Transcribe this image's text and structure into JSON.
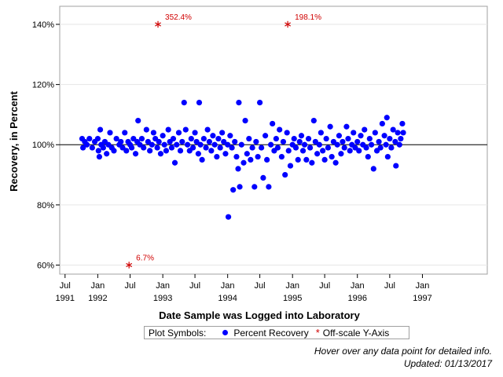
{
  "chart_data": {
    "type": "scatter",
    "title": "",
    "xlabel": "Date Sample was Logged into Laboratory",
    "ylabel": "Recovery, in Percent",
    "reference_line": 100,
    "ylim": [
      57,
      146
    ],
    "xlim": [
      "1991-06-01",
      "1998-01-01"
    ],
    "yticks": [
      {
        "value": 60,
        "label": "60%"
      },
      {
        "value": 80,
        "label": "80%"
      },
      {
        "value": 100,
        "label": "100%"
      },
      {
        "value": 120,
        "label": "120%"
      },
      {
        "value": 140,
        "label": "140%"
      }
    ],
    "xticks": [
      {
        "date": "1991-07-01",
        "label": "Jul",
        "year": "1991"
      },
      {
        "date": "1992-01-01",
        "label": "Jan",
        "year": "1992"
      },
      {
        "date": "1992-07-01",
        "label": "Jul",
        "year": ""
      },
      {
        "date": "1993-01-01",
        "label": "Jan",
        "year": "1993"
      },
      {
        "date": "1993-07-01",
        "label": "Jul",
        "year": ""
      },
      {
        "date": "1994-01-01",
        "label": "Jan",
        "year": "1994"
      },
      {
        "date": "1994-07-01",
        "label": "Jul",
        "year": ""
      },
      {
        "date": "1995-01-01",
        "label": "Jan",
        "year": "1995"
      },
      {
        "date": "1995-07-01",
        "label": "Jul",
        "year": ""
      },
      {
        "date": "1996-01-01",
        "label": "Jan",
        "year": "1996"
      },
      {
        "date": "1996-07-01",
        "label": "Jul",
        "year": ""
      },
      {
        "date": "1997-01-01",
        "label": "Jan",
        "year": "1997"
      }
    ],
    "series": [
      {
        "name": "Percent Recovery",
        "marker": "dot",
        "color": "#0000ff",
        "points": [
          [
            "1991-10-05",
            102
          ],
          [
            "1991-10-10",
            99
          ],
          [
            "1991-10-20",
            101
          ],
          [
            "1991-11-01",
            100
          ],
          [
            "1991-11-15",
            102
          ],
          [
            "1991-12-01",
            99
          ],
          [
            "1991-12-15",
            101
          ],
          [
            "1992-01-01",
            102
          ],
          [
            "1992-01-05",
            98
          ],
          [
            "1992-01-10",
            96
          ],
          [
            "1992-01-15",
            105
          ],
          [
            "1992-01-20",
            100
          ],
          [
            "1992-02-01",
            99
          ],
          [
            "1992-02-10",
            101
          ],
          [
            "1992-02-20",
            97
          ],
          [
            "1992-03-01",
            100
          ],
          [
            "1992-03-10",
            104
          ],
          [
            "1992-03-20",
            99
          ],
          [
            "1992-04-01",
            98
          ],
          [
            "1992-04-15",
            102
          ],
          [
            "1992-05-01",
            100
          ],
          [
            "1992-05-10",
            101
          ],
          [
            "1992-05-20",
            99
          ],
          [
            "1992-06-01",
            104
          ],
          [
            "1992-06-10",
            98
          ],
          [
            "1992-06-20",
            101
          ],
          [
            "1992-07-01",
            100
          ],
          [
            "1992-07-10",
            99
          ],
          [
            "1992-07-20",
            102
          ],
          [
            "1992-08-01",
            97
          ],
          [
            "1992-08-10",
            101
          ],
          [
            "1992-08-15",
            108
          ],
          [
            "1992-08-25",
            100
          ],
          [
            "1992-09-05",
            102
          ],
          [
            "1992-09-15",
            99
          ],
          [
            "1992-10-01",
            105
          ],
          [
            "1992-10-10",
            101
          ],
          [
            "1992-10-20",
            98
          ],
          [
            "1992-11-01",
            100
          ],
          [
            "1992-11-10",
            104
          ],
          [
            "1992-11-20",
            102
          ],
          [
            "1992-12-01",
            99
          ],
          [
            "1992-12-10",
            101
          ],
          [
            "1992-12-20",
            97
          ],
          [
            "1993-01-01",
            103
          ],
          [
            "1993-01-10",
            100
          ],
          [
            "1993-01-20",
            98
          ],
          [
            "1993-02-01",
            105
          ],
          [
            "1993-02-10",
            101
          ],
          [
            "1993-02-20",
            99
          ],
          [
            "1993-03-01",
            102
          ],
          [
            "1993-03-10",
            94
          ],
          [
            "1993-03-20",
            100
          ],
          [
            "1993-04-01",
            104
          ],
          [
            "1993-04-10",
            98
          ],
          [
            "1993-04-20",
            101
          ],
          [
            "1993-05-01",
            114
          ],
          [
            "1993-05-10",
            105
          ],
          [
            "1993-05-20",
            100
          ],
          [
            "1993-06-01",
            98
          ],
          [
            "1993-06-10",
            102
          ],
          [
            "1993-06-20",
            99
          ],
          [
            "1993-07-01",
            104
          ],
          [
            "1993-07-10",
            101
          ],
          [
            "1993-07-20",
            97
          ],
          [
            "1993-07-25",
            114
          ],
          [
            "1993-08-01",
            100
          ],
          [
            "1993-08-10",
            95
          ],
          [
            "1993-08-20",
            102
          ],
          [
            "1993-09-01",
            99
          ],
          [
            "1993-09-10",
            105
          ],
          [
            "1993-09-20",
            101
          ],
          [
            "1993-10-01",
            98
          ],
          [
            "1993-10-10",
            103
          ],
          [
            "1993-10-20",
            100
          ],
          [
            "1993-11-01",
            96
          ],
          [
            "1993-11-10",
            102
          ],
          [
            "1993-11-20",
            99
          ],
          [
            "1993-12-01",
            104
          ],
          [
            "1993-12-10",
            101
          ],
          [
            "1993-12-20",
            97
          ],
          [
            "1994-01-01",
            100
          ],
          [
            "1994-01-05",
            76
          ],
          [
            "1994-01-15",
            103
          ],
          [
            "1994-01-25",
            99
          ],
          [
            "1994-02-01",
            85
          ],
          [
            "1994-02-10",
            101
          ],
          [
            "1994-02-20",
            96
          ],
          [
            "1994-03-01",
            92
          ],
          [
            "1994-03-05",
            114
          ],
          [
            "1994-03-10",
            86
          ],
          [
            "1994-03-20",
            100
          ],
          [
            "1994-04-01",
            94
          ],
          [
            "1994-04-10",
            108
          ],
          [
            "1994-04-20",
            97
          ],
          [
            "1994-05-01",
            102
          ],
          [
            "1994-05-10",
            95
          ],
          [
            "1994-05-20",
            99
          ],
          [
            "1994-06-01",
            86
          ],
          [
            "1994-06-10",
            101
          ],
          [
            "1994-06-20",
            96
          ],
          [
            "1994-07-01",
            114
          ],
          [
            "1994-07-10",
            99
          ],
          [
            "1994-07-20",
            89
          ],
          [
            "1994-08-01",
            103
          ],
          [
            "1994-08-10",
            95
          ],
          [
            "1994-08-20",
            86
          ],
          [
            "1994-09-01",
            100
          ],
          [
            "1994-09-10",
            107
          ],
          [
            "1994-09-20",
            98
          ],
          [
            "1994-10-01",
            102
          ],
          [
            "1994-10-10",
            99
          ],
          [
            "1994-10-20",
            105
          ],
          [
            "1994-11-01",
            96
          ],
          [
            "1994-11-10",
            101
          ],
          [
            "1994-11-20",
            90
          ],
          [
            "1994-12-01",
            104
          ],
          [
            "1994-12-10",
            98
          ],
          [
            "1994-12-20",
            93
          ],
          [
            "1995-01-01",
            100
          ],
          [
            "1995-01-10",
            102
          ],
          [
            "1995-01-20",
            99
          ],
          [
            "1995-02-01",
            95
          ],
          [
            "1995-02-10",
            101
          ],
          [
            "1995-02-20",
            103
          ],
          [
            "1995-03-01",
            98
          ],
          [
            "1995-03-10",
            100
          ],
          [
            "1995-03-20",
            95
          ],
          [
            "1995-04-01",
            102
          ],
          [
            "1995-04-10",
            99
          ],
          [
            "1995-04-20",
            94
          ],
          [
            "1995-05-01",
            108
          ],
          [
            "1995-05-10",
            101
          ],
          [
            "1995-05-20",
            97
          ],
          [
            "1995-06-01",
            100
          ],
          [
            "1995-06-10",
            104
          ],
          [
            "1995-06-20",
            98
          ],
          [
            "1995-07-01",
            95
          ],
          [
            "1995-07-10",
            102
          ],
          [
            "1995-07-20",
            99
          ],
          [
            "1995-08-01",
            106
          ],
          [
            "1995-08-10",
            96
          ],
          [
            "1995-08-20",
            101
          ],
          [
            "1995-09-01",
            94
          ],
          [
            "1995-09-10",
            100
          ],
          [
            "1995-09-20",
            103
          ],
          [
            "1995-10-01",
            97
          ],
          [
            "1995-10-10",
            101
          ],
          [
            "1995-10-20",
            99
          ],
          [
            "1995-11-01",
            106
          ],
          [
            "1995-11-10",
            102
          ],
          [
            "1995-11-20",
            98
          ],
          [
            "1995-12-01",
            100
          ],
          [
            "1995-12-10",
            104
          ],
          [
            "1995-12-20",
            99
          ],
          [
            "1996-01-01",
            101
          ],
          [
            "1996-01-10",
            98
          ],
          [
            "1996-01-20",
            103
          ],
          [
            "1996-02-01",
            100
          ],
          [
            "1996-02-10",
            105
          ],
          [
            "1996-02-20",
            99
          ],
          [
            "1996-03-01",
            96
          ],
          [
            "1996-03-10",
            102
          ],
          [
            "1996-03-20",
            100
          ],
          [
            "1996-04-01",
            92
          ],
          [
            "1996-04-10",
            104
          ],
          [
            "1996-04-20",
            98
          ],
          [
            "1996-05-01",
            101
          ],
          [
            "1996-05-10",
            99
          ],
          [
            "1996-05-20",
            107
          ],
          [
            "1996-06-01",
            103
          ],
          [
            "1996-06-10",
            100
          ],
          [
            "1996-06-15",
            109
          ],
          [
            "1996-06-20",
            96
          ],
          [
            "1996-07-01",
            102
          ],
          [
            "1996-07-10",
            99
          ],
          [
            "1996-07-20",
            105
          ],
          [
            "1996-08-01",
            101
          ],
          [
            "1996-08-05",
            93
          ],
          [
            "1996-08-15",
            104
          ],
          [
            "1996-08-25",
            100
          ],
          [
            "1996-09-01",
            102
          ],
          [
            "1996-09-10",
            107
          ],
          [
            "1996-09-15",
            104
          ]
        ]
      },
      {
        "name": "Off-scale Y-Axis",
        "marker": "star",
        "color": "#d00000",
        "points": [
          {
            "date": "1992-06-25",
            "y": 60,
            "label": "6.7%"
          },
          {
            "date": "1992-12-05",
            "y": 140,
            "label": "352.4%"
          },
          {
            "date": "1994-12-05",
            "y": 140,
            "label": "198.1%"
          }
        ]
      }
    ],
    "legend": {
      "title": "Plot Symbols:",
      "placement": "bottom",
      "items": [
        "Percent Recovery",
        "Off-scale Y-Axis"
      ]
    }
  },
  "footer": {
    "hint": "Hover over any data point for detailed info.",
    "updated": "Updated: 01/13/2017"
  }
}
